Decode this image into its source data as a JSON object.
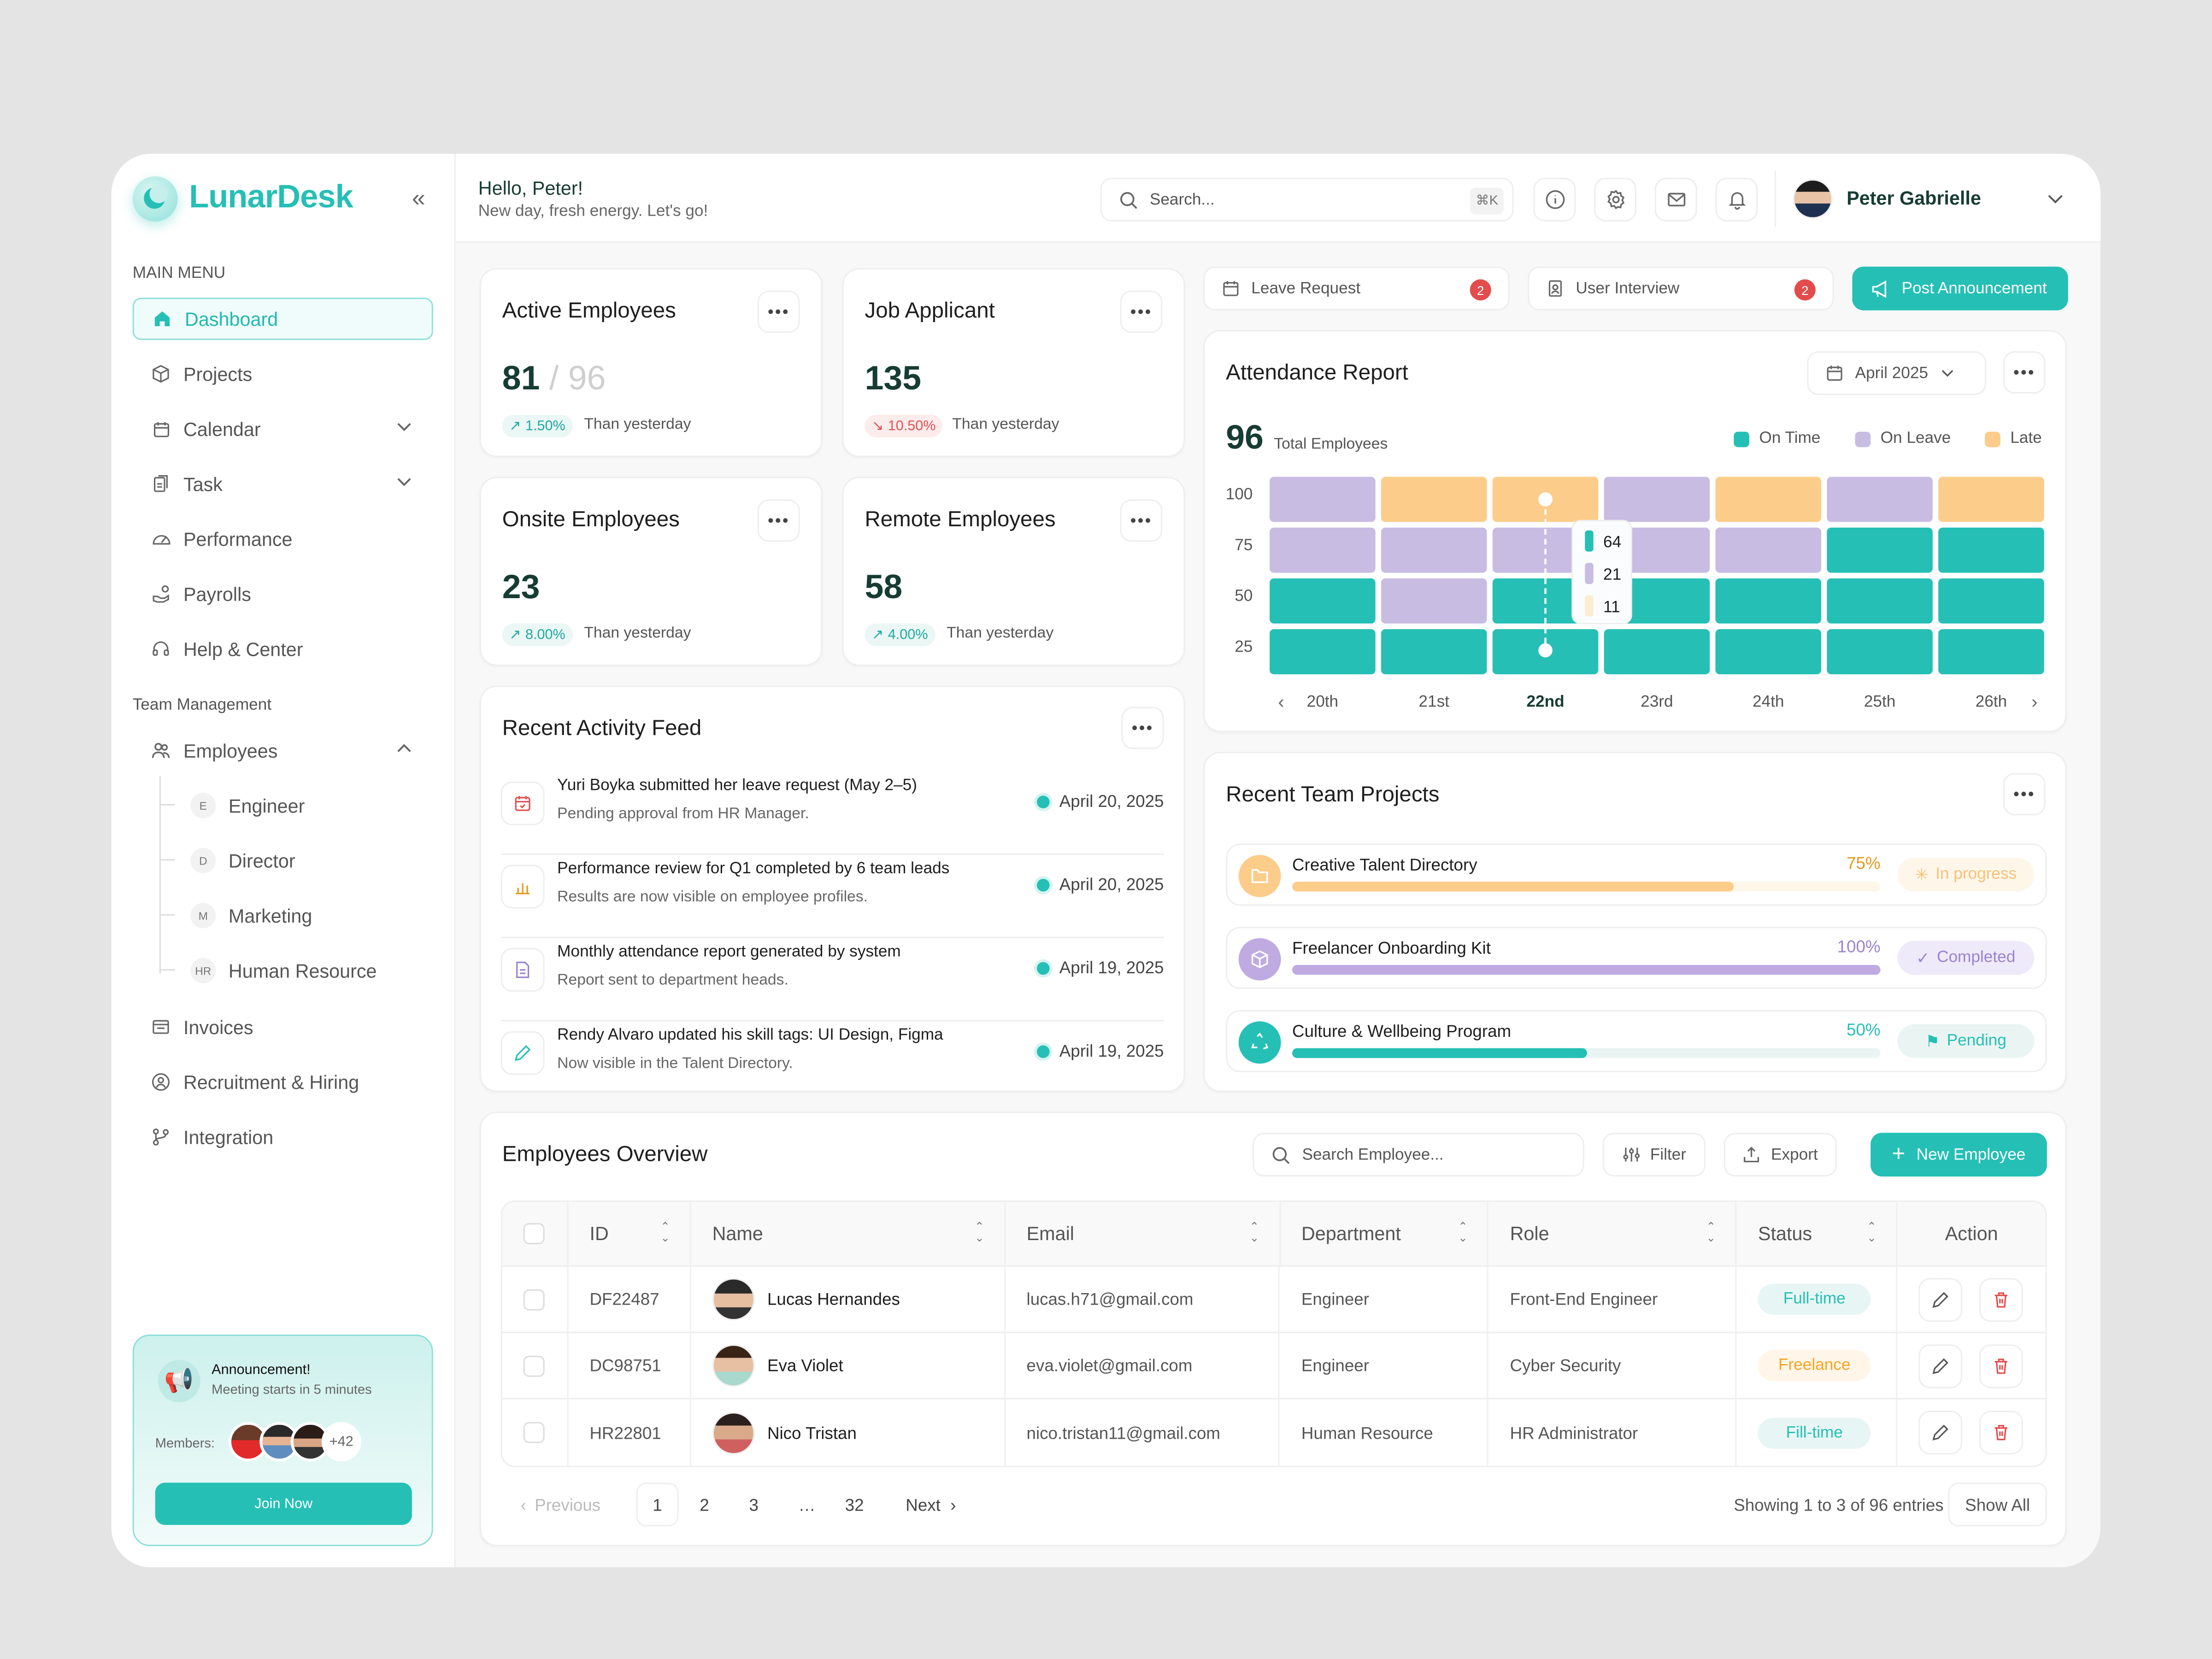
{
  "brand": {
    "name": "LunarDesk",
    "accent": "#25bfb5"
  },
  "sidebar": {
    "main_menu_label": "MAIN MENU",
    "items": [
      {
        "label": "Dashboard",
        "icon": "home-icon",
        "active": true
      },
      {
        "label": "Projects",
        "icon": "box-icon"
      },
      {
        "label": "Calendar",
        "icon": "calendar-icon",
        "expandable": true
      },
      {
        "label": "Task",
        "icon": "task-icon",
        "expandable": true
      },
      {
        "label": "Performance",
        "icon": "gauge-icon"
      },
      {
        "label": "Payrolls",
        "icon": "payroll-icon"
      },
      {
        "label": "Help & Center",
        "icon": "headset-icon"
      }
    ],
    "team_label": "Team Management",
    "employees_label": "Employees",
    "employee_subs": [
      {
        "badge": "E",
        "label": "Engineer"
      },
      {
        "badge": "D",
        "label": "Director"
      },
      {
        "badge": "M",
        "label": "Marketing"
      },
      {
        "badge": "HR",
        "label": "Human Resource"
      }
    ],
    "more_items": [
      {
        "label": "Invoices",
        "icon": "invoice-icon"
      },
      {
        "label": "Recruitment & Hiring",
        "icon": "recruit-icon"
      },
      {
        "label": "Integration",
        "icon": "integration-icon"
      }
    ],
    "announcement": {
      "title": "Announcement!",
      "subtitle": "Meeting starts in 5 minutes",
      "members_label": "Members:",
      "extra_members": "+42",
      "button": "Join Now"
    }
  },
  "header": {
    "greeting": "Hello, Peter!",
    "subtitle": "New day, fresh energy. Let's go!",
    "search_placeholder": "Search...",
    "shortcut": "⌘K",
    "user_name": "Peter Gabrielle"
  },
  "stats": [
    {
      "title": "Active Employees",
      "value": "81",
      "total": "/ 96",
      "change": "1.50%",
      "direction": "up",
      "note": "Than yesterday"
    },
    {
      "title": "Job Applicant",
      "value": "135",
      "change": "10.50%",
      "direction": "down",
      "note": "Than yesterday"
    },
    {
      "title": "Onsite Employees",
      "value": "23",
      "change": "8.00%",
      "direction": "up",
      "note": "Than yesterday"
    },
    {
      "title": "Remote Employees",
      "value": "58",
      "change": "4.00%",
      "direction": "up",
      "note": "Than yesterday"
    }
  ],
  "quick_actions": {
    "leave_request": "Leave Request",
    "leave_count": "2",
    "user_interview": "User Interview",
    "interview_count": "2",
    "post_announcement": "Post Announcement"
  },
  "activity": {
    "title": "Recent Activity Feed",
    "items": [
      {
        "title": "Yuri Boyka submitted her leave request (May 2–5)",
        "sub": "Pending approval from HR Manager.",
        "date": "April 20, 2025",
        "icon": "calendar-icon"
      },
      {
        "title": "Performance review for Q1 completed by 6 team leads",
        "sub": "Results are now visible on employee profiles.",
        "date": "April 20, 2025",
        "icon": "chart-icon"
      },
      {
        "title": "Monthly attendance report generated by system",
        "sub": "Report sent to department heads.",
        "date": "April 19, 2025",
        "icon": "document-icon"
      },
      {
        "title": "Rendy Alvaro updated his skill tags: UI Design, Figma",
        "sub": "Now visible in the Talent Directory.",
        "date": "April 19, 2025",
        "icon": "pencil-icon"
      }
    ]
  },
  "attendance": {
    "title": "Attendance Report",
    "period": "April 2025",
    "total": "96",
    "total_label": "Total Employees"
  },
  "chart_data": {
    "type": "heatmap",
    "title": "Attendance Report",
    "categories": [
      "20th",
      "21st",
      "22nd",
      "23rd",
      "24th",
      "25th",
      "26th"
    ],
    "highlighted": "22nd",
    "y_ticks": [
      "100",
      "75",
      "50",
      "25"
    ],
    "ylim": [
      0,
      100
    ],
    "legend": [
      {
        "name": "On Time",
        "color": "#25bfb5"
      },
      {
        "name": "On Leave",
        "color": "#c8bce3"
      },
      {
        "name": "Late",
        "color": "#fccd8a"
      }
    ],
    "legend_position": "top-right",
    "cells_top_to_bottom": [
      [
        "On Leave",
        "On Leave",
        "On Time",
        "On Time"
      ],
      [
        "Late",
        "On Leave",
        "On Leave",
        "On Time"
      ],
      [
        "Late",
        "On Leave",
        "On Time",
        "On Time"
      ],
      [
        "On Leave",
        "On Leave",
        "On Time",
        "On Time"
      ],
      [
        "Late",
        "On Leave",
        "On Time",
        "On Time"
      ],
      [
        "On Leave",
        "On Time",
        "On Time",
        "On Time"
      ],
      [
        "Late",
        "On Time",
        "On Time",
        "On Time"
      ]
    ],
    "tooltip": {
      "day": "22nd",
      "values": [
        {
          "series": "On Time",
          "value": 64
        },
        {
          "series": "On Leave",
          "value": 21
        },
        {
          "series": "Late",
          "value": 11
        }
      ]
    }
  },
  "projects": {
    "title": "Recent Team Projects",
    "items": [
      {
        "name": "Creative Talent Directory",
        "progress": 75,
        "label": "75%",
        "status": "In progress",
        "color": "#fccd8a",
        "text": "#e39a1f",
        "track": "#fff6ea",
        "badge_bg": "#fff6ea",
        "badge_fg": "#f5c27a",
        "icon": "folder-star-icon"
      },
      {
        "name": "Freelancer Onboarding Kit",
        "progress": 100,
        "label": "100%",
        "status": "Completed",
        "color": "#bfaae2",
        "text": "#9a83cf",
        "track": "#f1ecfa",
        "badge_bg": "#eeeaf9",
        "badge_fg": "#9a83cf",
        "icon": "cube-icon"
      },
      {
        "name": "Culture & Wellbeing Program",
        "progress": 50,
        "label": "50%",
        "status": "Pending",
        "color": "#25bfb5",
        "text": "#25bfb5",
        "track": "#eaf5f3",
        "badge_bg": "#eaf5f3",
        "badge_fg": "#25bfb5",
        "icon": "recycle-icon"
      }
    ]
  },
  "employees": {
    "title": "Employees Overview",
    "search_placeholder": "Search Employee...",
    "filter": "Filter",
    "export": "Export",
    "new": "New Employee",
    "columns": [
      "ID",
      "Name",
      "Email",
      "Department",
      "Role",
      "Status",
      "Action"
    ],
    "rows": [
      {
        "id": "DF22487",
        "name": "Lucas Hernandes",
        "email": "lucas.h71@gmail.com",
        "department": "Engineer",
        "role": "Front-End Engineer",
        "status": "Full-time",
        "status_type": "teal"
      },
      {
        "id": "DC98751",
        "name": "Eva Violet",
        "email": "eva.violet@gmail.com",
        "department": "Engineer",
        "role": "Cyber Security",
        "status": "Freelance",
        "status_type": "orange"
      },
      {
        "id": "HR22801",
        "name": "Nico Tristan",
        "email": "nico.tristan11@gmail.com",
        "department": "Human Resource",
        "role": "HR Administrator",
        "status": "Fill-time",
        "status_type": "teal"
      }
    ],
    "pagination": {
      "previous": "Previous",
      "pages": [
        "1",
        "2",
        "3",
        "…",
        "32"
      ],
      "current": "1",
      "next": "Next",
      "summary": "Showing 1 to 3 of 96 entries",
      "show_all": "Show All"
    }
  }
}
